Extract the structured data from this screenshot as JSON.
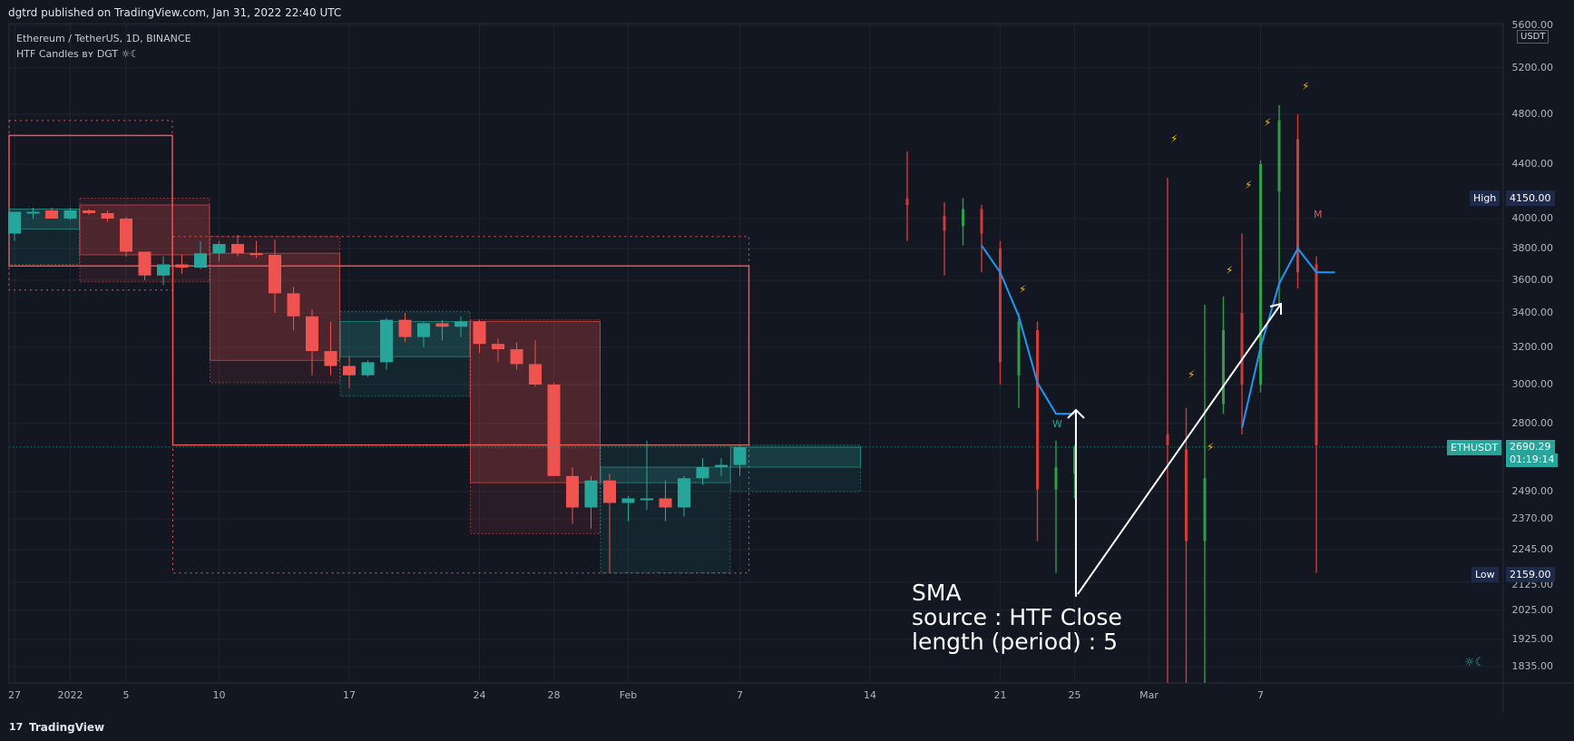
{
  "header": {
    "text": "dgtrd published on TradingView.com, Jan 31, 2022 22:40 UTC"
  },
  "legend": {
    "symbol_line": "Ethereum / TetherUS, 1D, BINANCE",
    "indicator_line": "HTF Candles ʙʏ DGT ☼☾"
  },
  "footer": {
    "logo": "17",
    "brand": "TradingView"
  },
  "price_axis": {
    "unit": "USDT",
    "labels": [
      "5600.00",
      "5200.00",
      "4800.00",
      "4400.00",
      "4000.00",
      "3800.00",
      "3600.00",
      "3400.00",
      "3200.00",
      "3000.00",
      "2800.00",
      "2490.00",
      "2370.00",
      "2245.00",
      "2125.00",
      "2025.00",
      "1925.00",
      "1835.00"
    ]
  },
  "tags": {
    "high_label": "High",
    "high_value": "4150.00",
    "low_label": "Low",
    "low_value": "2159.00",
    "symbol": "ETHUSDT",
    "price": "2690.29",
    "countdown": "01:19:14"
  },
  "colors": {
    "up": "#26a69a",
    "down": "#ef5350",
    "sma": "#2196f3",
    "background": "#131722",
    "bolt": "#f5b316"
  },
  "time_axis": {
    "labels": [
      "27",
      "2022",
      "5",
      "10",
      "17",
      "24",
      "28",
      "Feb",
      "7",
      "14",
      "21",
      "25",
      "Mar",
      "7"
    ]
  },
  "annotation": {
    "line1": "SMA",
    "line2": "source : HTF Close",
    "line3": "length (period) : 5"
  },
  "markers": {
    "w_label": "W",
    "m_label": "M",
    "signature": "☼☾"
  },
  "chart_data": {
    "type": "candlestick",
    "symbol": "ETHUSDT",
    "timeframe": "1D",
    "last_price": 2690.29,
    "daily_candles": [
      {
        "date": "Dec 23",
        "o": 3900,
        "h": 4000,
        "l": 3850,
        "c": 4050
      },
      {
        "date": "Dec 24",
        "o": 4050,
        "h": 4080,
        "l": 4000,
        "c": 4050
      },
      {
        "date": "Dec 25",
        "o": 4060,
        "h": 4080,
        "l": 4030,
        "c": 4000
      },
      {
        "date": "Dec 26",
        "o": 4000,
        "h": 4080,
        "l": 3990,
        "c": 4060
      },
      {
        "date": "Dec 27",
        "o": 4060,
        "h": 4070,
        "l": 4030,
        "c": 4040
      },
      {
        "date": "Dec 28",
        "o": 4040,
        "h": 4060,
        "l": 3980,
        "c": 4000
      },
      {
        "date": "Dec 29",
        "o": 4000,
        "h": 4010,
        "l": 3750,
        "c": 3780
      },
      {
        "date": "Dec 30",
        "o": 3780,
        "h": 3780,
        "l": 3600,
        "c": 3630
      },
      {
        "date": "Dec 31",
        "o": 3630,
        "h": 3750,
        "l": 3570,
        "c": 3700
      },
      {
        "date": "Jan 1",
        "o": 3700,
        "h": 3760,
        "l": 3640,
        "c": 3680
      },
      {
        "date": "Jan 2",
        "o": 3680,
        "h": 3850,
        "l": 3670,
        "c": 3770
      },
      {
        "date": "Jan 3",
        "o": 3770,
        "h": 3850,
        "l": 3720,
        "c": 3830
      },
      {
        "date": "Jan 4",
        "o": 3830,
        "h": 3890,
        "l": 3750,
        "c": 3770
      },
      {
        "date": "Jan 5",
        "o": 3770,
        "h": 3850,
        "l": 3740,
        "c": 3760
      },
      {
        "date": "Jan 6",
        "o": 3760,
        "h": 3860,
        "l": 3400,
        "c": 3520
      },
      {
        "date": "Jan 7",
        "o": 3520,
        "h": 3560,
        "l": 3300,
        "c": 3380
      },
      {
        "date": "Jan 8",
        "o": 3380,
        "h": 3420,
        "l": 3050,
        "c": 3180
      },
      {
        "date": "Jan 9",
        "o": 3180,
        "h": 3350,
        "l": 3050,
        "c": 3100
      },
      {
        "date": "Jan 10",
        "o": 3100,
        "h": 3150,
        "l": 2980,
        "c": 3050
      },
      {
        "date": "Jan 11",
        "o": 3050,
        "h": 3130,
        "l": 3040,
        "c": 3120
      },
      {
        "date": "Jan 12",
        "o": 3120,
        "h": 3370,
        "l": 3080,
        "c": 3360
      },
      {
        "date": "Jan 13",
        "o": 3360,
        "h": 3400,
        "l": 3230,
        "c": 3260
      },
      {
        "date": "Jan 14",
        "o": 3260,
        "h": 3350,
        "l": 3200,
        "c": 3340
      },
      {
        "date": "Jan 15",
        "o": 3340,
        "h": 3360,
        "l": 3240,
        "c": 3320
      },
      {
        "date": "Jan 16",
        "o": 3320,
        "h": 3380,
        "l": 3260,
        "c": 3350
      },
      {
        "date": "Jan 17",
        "o": 3350,
        "h": 3360,
        "l": 3170,
        "c": 3220
      },
      {
        "date": "Jan 18",
        "o": 3220,
        "h": 3250,
        "l": 3120,
        "c": 3190
      },
      {
        "date": "Jan 19",
        "o": 3190,
        "h": 3230,
        "l": 3080,
        "c": 3110
      },
      {
        "date": "Jan 20",
        "o": 3110,
        "h": 3240,
        "l": 2990,
        "c": 3000
      },
      {
        "date": "Jan 21",
        "o": 3000,
        "h": 3010,
        "l": 2650,
        "c": 2560
      },
      {
        "date": "Jan 22",
        "o": 2560,
        "h": 2600,
        "l": 2350,
        "c": 2420
      },
      {
        "date": "Jan 23",
        "o": 2420,
        "h": 2560,
        "l": 2330,
        "c": 2540
      },
      {
        "date": "Jan 24",
        "o": 2540,
        "h": 2570,
        "l": 2160,
        "c": 2440
      },
      {
        "date": "Jan 25",
        "o": 2440,
        "h": 2470,
        "l": 2360,
        "c": 2460
      },
      {
        "date": "Jan 26",
        "o": 2460,
        "h": 2720,
        "l": 2410,
        "c": 2460
      },
      {
        "date": "Jan 27",
        "o": 2460,
        "h": 2540,
        "l": 2360,
        "c": 2420
      },
      {
        "date": "Jan 28",
        "o": 2420,
        "h": 2560,
        "l": 2380,
        "c": 2550
      },
      {
        "date": "Jan 29",
        "o": 2550,
        "h": 2640,
        "l": 2520,
        "c": 2600
      },
      {
        "date": "Jan 30",
        "o": 2600,
        "h": 2640,
        "l": 2560,
        "c": 2610
      },
      {
        "date": "Jan 31",
        "o": 2610,
        "h": 2700,
        "l": 2560,
        "c": 2690
      }
    ],
    "htf_boxes_weekly": [
      {
        "start": "Dec 23",
        "end": "Dec 26",
        "o": 3930,
        "c": 4070,
        "h": 4070,
        "l": 3700,
        "dir": "up"
      },
      {
        "start": "Dec 27",
        "end": "Jan 2",
        "o": 4100,
        "c": 3760,
        "h": 4150,
        "l": 3590,
        "dir": "down"
      },
      {
        "start": "Jan 3",
        "end": "Jan 9",
        "o": 3770,
        "c": 3130,
        "h": 3880,
        "l": 3010,
        "dir": "down"
      },
      {
        "start": "Jan 10",
        "end": "Jan 16",
        "o": 3150,
        "c": 3350,
        "h": 3410,
        "l": 2940,
        "dir": "up"
      },
      {
        "start": "Jan 17",
        "end": "Jan 23",
        "o": 3350,
        "c": 2530,
        "h": 3360,
        "l": 2310,
        "dir": "down"
      },
      {
        "start": "Jan 24",
        "end": "Jan 30",
        "o": 2530,
        "c": 2600,
        "h": 2700,
        "l": 2159,
        "dir": "up"
      },
      {
        "start": "Jan 31",
        "end": "Feb 6",
        "o": 2600,
        "c": 2690,
        "h": 2700,
        "l": 2490,
        "dir": "up"
      }
    ],
    "htf_boxes_monthly": [
      {
        "start": "Dec 23",
        "end": "Dec 31",
        "o": 4630,
        "c": 3690,
        "h": 4750,
        "l": 3540,
        "dir": "down"
      },
      {
        "start": "Jan 1",
        "end": "Jan 31",
        "o": 3690,
        "c": 2700,
        "h": 3880,
        "l": 2159,
        "dir": "down"
      }
    ],
    "projection_wicks": [
      {
        "date": "Feb 9",
        "h": 4500,
        "l": 3850,
        "o": 4150,
        "c": 4100
      },
      {
        "date": "Feb 11",
        "h": 4120,
        "l": 3630,
        "o": 4020,
        "c": 3920
      },
      {
        "date": "Feb 12",
        "h": 4150,
        "l": 3820,
        "o": 3950,
        "c": 4070,
        "up": true
      },
      {
        "date": "Feb 13",
        "h": 4100,
        "l": 3650,
        "o": 4070,
        "c": 3900
      },
      {
        "date": "Feb 14",
        "h": 3850,
        "l": 3000,
        "o": 3800,
        "c": 3120
      },
      {
        "date": "Feb 15",
        "h": 3400,
        "l": 2880,
        "o": 3050,
        "c": 3350,
        "up": true
      },
      {
        "date": "Feb 16",
        "h": 3350,
        "l": 2280,
        "o": 3300,
        "c": 2500
      },
      {
        "date": "Feb 17",
        "h": 2720,
        "l": 2159,
        "o": 2500,
        "c": 2600,
        "up": true
      },
      {
        "date": "Feb 18",
        "h": 2700,
        "l": 2460,
        "o": 2570,
        "c": 2690,
        "up": true
      },
      {
        "date": "Feb 23",
        "h": 4300,
        "l": 1780,
        "o": 2750,
        "c": 2700
      },
      {
        "date": "Feb 24",
        "h": 2880,
        "l": 1780,
        "o": 2680,
        "c": 2280
      },
      {
        "date": "Feb 25",
        "h": 3450,
        "l": 1780,
        "o": 2280,
        "c": 2550,
        "up": true
      },
      {
        "date": "Feb 26",
        "h": 3500,
        "l": 2850,
        "o": 2900,
        "c": 3300,
        "up": true
      },
      {
        "date": "Feb 27",
        "h": 3900,
        "l": 2750,
        "o": 3400,
        "c": 3000
      },
      {
        "date": "Feb 28",
        "h": 4430,
        "l": 2960,
        "o": 3000,
        "c": 4400,
        "up": true
      },
      {
        "date": "Mar 1",
        "h": 4880,
        "l": 3450,
        "o": 4200,
        "c": 4750,
        "up": true
      },
      {
        "date": "Mar 2",
        "h": 4800,
        "l": 3550,
        "o": 4600,
        "c": 3650
      },
      {
        "date": "Mar 3",
        "h": 3750,
        "l": 2159,
        "o": 3700,
        "c": 2700
      }
    ],
    "sma_line": [
      {
        "date": "Feb 13",
        "y": 3820
      },
      {
        "date": "Feb 14",
        "y": 3650
      },
      {
        "date": "Feb 15",
        "y": 3380
      },
      {
        "date": "Feb 16",
        "y": 3010
      },
      {
        "date": "Feb 17",
        "y": 2850
      },
      {
        "date": "Feb 18",
        "y": 2850
      },
      {
        "date": "Feb 27",
        "y": 2780
      },
      {
        "date": "Feb 28",
        "y": 3200
      },
      {
        "date": "Mar 1",
        "y": 3580
      },
      {
        "date": "Mar 2",
        "y": 3800
      },
      {
        "date": "Mar 3",
        "y": 3650
      },
      {
        "date": "Mar 4",
        "y": 3650
      }
    ],
    "high": 4150.0,
    "low": 2159.0
  }
}
